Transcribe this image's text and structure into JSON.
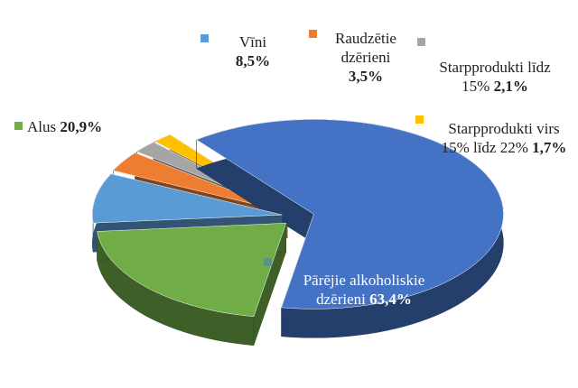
{
  "chart_data": {
    "type": "pie3d",
    "categories": [
      "Vīni",
      "Raudzētie dzērieni",
      "Starpprodukti līdz 15%",
      "Starpprodukti virs 15% līdz 22%",
      "Pārējie alkoholiskie dzērieni",
      "Alus"
    ],
    "values": [
      8.5,
      3.5,
      2.1,
      1.7,
      63.4,
      20.9
    ],
    "value_labels": [
      "8,5%",
      "3,5%",
      "2,1%",
      "1,7%",
      "63,4%",
      "20,9%"
    ],
    "colors": [
      "#5b9bd5",
      "#ed7d31",
      "#a5a5a5",
      "#ffc000",
      "#4472c4",
      "#70ad47"
    ]
  }
}
